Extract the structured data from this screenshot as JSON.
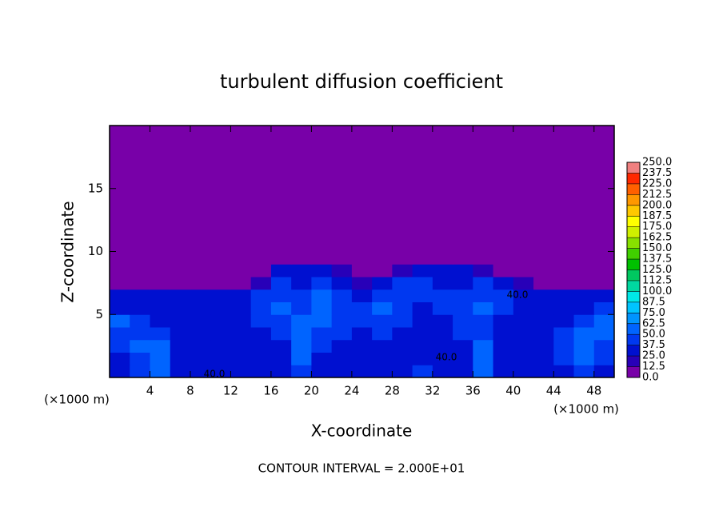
{
  "chart_data": {
    "type": "heatmap",
    "title": "turbulent diffusion coefficient",
    "xlabel": "X-coordinate",
    "ylabel": "Z-coordinate",
    "x_unit_left": "(×1000 m)",
    "x_unit_right": "(×1000 m)",
    "footer": "CONTOUR INTERVAL = 2.000E+01",
    "contour_labels": [
      "40.0",
      "40.0",
      "40.0"
    ],
    "xlim": [
      0,
      50
    ],
    "ylim": [
      0,
      20
    ],
    "xticks": [
      4,
      8,
      12,
      16,
      20,
      24,
      28,
      32,
      36,
      40,
      44,
      48
    ],
    "yticks": [
      5,
      10,
      15
    ],
    "x_edges": [
      0,
      2,
      4,
      6,
      8,
      10,
      12,
      14,
      16,
      18,
      20,
      22,
      24,
      26,
      28,
      30,
      32,
      34,
      36,
      38,
      40,
      42,
      44,
      46,
      48,
      50
    ],
    "z_edges": [
      0,
      1,
      2,
      3,
      4,
      5,
      6,
      7,
      8,
      9,
      10,
      20
    ],
    "values": [
      [
        30,
        40,
        55,
        30,
        25,
        30,
        25,
        25,
        30,
        40,
        25,
        30,
        35,
        30,
        30,
        40,
        35,
        30,
        60,
        30,
        35,
        30,
        30,
        45,
        35
      ],
      [
        35,
        45,
        60,
        30,
        30,
        30,
        30,
        30,
        25,
        50,
        35,
        30,
        35,
        30,
        30,
        35,
        30,
        30,
        55,
        30,
        30,
        30,
        40,
        50,
        40
      ],
      [
        40,
        50,
        55,
        35,
        30,
        25,
        30,
        30,
        35,
        55,
        40,
        35,
        35,
        35,
        30,
        35,
        30,
        35,
        50,
        30,
        35,
        30,
        45,
        55,
        45
      ],
      [
        45,
        45,
        40,
        35,
        30,
        30,
        25,
        35,
        40,
        50,
        45,
        40,
        35,
        40,
        35,
        35,
        30,
        40,
        45,
        35,
        35,
        35,
        40,
        50,
        50
      ],
      [
        50,
        40,
        35,
        30,
        25,
        30,
        30,
        40,
        45,
        55,
        50,
        40,
        40,
        45,
        40,
        35,
        35,
        45,
        45,
        35,
        30,
        30,
        35,
        45,
        55
      ],
      [
        35,
        30,
        30,
        30,
        30,
        25,
        30,
        45,
        50,
        45,
        55,
        45,
        40,
        50,
        40,
        35,
        40,
        45,
        50,
        40,
        30,
        30,
        30,
        35,
        40
      ],
      [
        25,
        30,
        25,
        30,
        25,
        25,
        25,
        40,
        45,
        40,
        50,
        40,
        30,
        45,
        45,
        40,
        40,
        40,
        45,
        40,
        30,
        25,
        25,
        25,
        30
      ],
      [
        0,
        0,
        0,
        0,
        0,
        0,
        0,
        20,
        40,
        35,
        45,
        35,
        15,
        25,
        40,
        40,
        35,
        35,
        40,
        35,
        15,
        0,
        0,
        0,
        0
      ],
      [
        0,
        0,
        0,
        0,
        0,
        0,
        0,
        0,
        25,
        25,
        30,
        20,
        0,
        0,
        20,
        25,
        30,
        30,
        20,
        10,
        0,
        0,
        0,
        0,
        0
      ],
      [
        0,
        0,
        0,
        0,
        0,
        0,
        0,
        0,
        0,
        0,
        0,
        0,
        0,
        0,
        0,
        0,
        0,
        0,
        0,
        0,
        0,
        0,
        0,
        0,
        0
      ],
      [
        0,
        0,
        0,
        0,
        0,
        0,
        0,
        0,
        0,
        0,
        0,
        0,
        0,
        0,
        0,
        0,
        0,
        0,
        0,
        0,
        0,
        0,
        0,
        0,
        0
      ]
    ],
    "colorbar": {
      "ticks": [
        {
          "value": 0,
          "label": "0.0"
        },
        {
          "value": 12.5,
          "label": "12.5"
        },
        {
          "value": 25,
          "label": "25.0"
        },
        {
          "value": 37.5,
          "label": "37.5"
        },
        {
          "value": 50,
          "label": "50.0"
        },
        {
          "value": 62.5,
          "label": "62.5"
        },
        {
          "value": 75,
          "label": "75.0"
        },
        {
          "value": 87.5,
          "label": "87.5"
        },
        {
          "value": 100,
          "label": "100.0"
        },
        {
          "value": 112.5,
          "label": "112.5"
        },
        {
          "value": 125,
          "label": "125.0"
        },
        {
          "value": 137.5,
          "label": "137.5"
        },
        {
          "value": 150,
          "label": "150.0"
        },
        {
          "value": 162.5,
          "label": "162.5"
        },
        {
          "value": 175,
          "label": "175.0"
        },
        {
          "value": 187.5,
          "label": "187.5"
        },
        {
          "value": 200,
          "label": "200.0"
        },
        {
          "value": 212.5,
          "label": "212.5"
        },
        {
          "value": 225,
          "label": "225.0"
        },
        {
          "value": 237.5,
          "label": "237.5"
        },
        {
          "value": 250,
          "label": "250.0"
        }
      ],
      "colors": [
        "#7800a8",
        "#2800b8",
        "#0010d0",
        "#0038f0",
        "#0064ff",
        "#0094ff",
        "#00c4ff",
        "#00e8e8",
        "#00d8a0",
        "#00c860",
        "#00c000",
        "#40d000",
        "#88e000",
        "#d0f000",
        "#ffff00",
        "#ffc800",
        "#ff9800",
        "#ff6000",
        "#ff2800",
        "#f08080"
      ]
    }
  }
}
